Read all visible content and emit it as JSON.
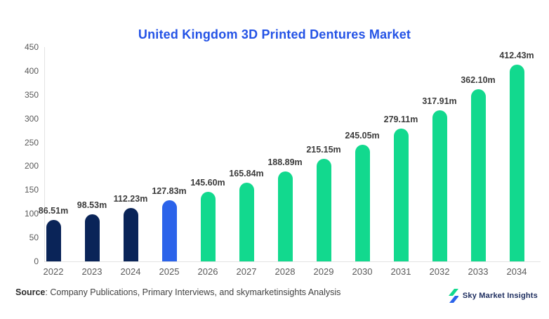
{
  "title": {
    "text": "United Kingdom 3D Printed Dentures Market",
    "color": "#2453e6"
  },
  "chart_data": {
    "type": "bar",
    "title": "United Kingdom 3D Printed Dentures Market",
    "categories": [
      "2022",
      "2023",
      "2024",
      "2025",
      "2026",
      "2027",
      "2028",
      "2029",
      "2030",
      "2031",
      "2032",
      "2033",
      "2034"
    ],
    "values": [
      86.51,
      98.53,
      112.23,
      127.83,
      145.6,
      165.84,
      188.89,
      215.15,
      245.05,
      279.11,
      317.91,
      362.1,
      412.43
    ],
    "value_labels": [
      "86.51m",
      "98.53m",
      "112.23m",
      "127.83m",
      "145.60m",
      "165.84m",
      "188.89m",
      "215.15m",
      "245.05m",
      "279.11m",
      "317.91m",
      "362.10m",
      "412.43m"
    ],
    "bar_colors": [
      "#0a2458",
      "#0a2458",
      "#0a2458",
      "#2b63ea",
      "#12d98e",
      "#12d98e",
      "#12d98e",
      "#12d98e",
      "#12d98e",
      "#12d98e",
      "#12d98e",
      "#12d98e",
      "#12d98e"
    ],
    "xlabel": "",
    "ylabel": "",
    "ylim": [
      0,
      450
    ],
    "yticks": [
      0,
      50,
      100,
      150,
      200,
      250,
      300,
      350,
      400,
      450
    ],
    "grid": false,
    "legend": false
  },
  "footer": {
    "source_label": "Source",
    "source_rest": ": Company Publications, Primary Interviews, and skymarketinsights Analysis",
    "brand_name": "Sky Market Insights",
    "brand_icon_top_color": "#12d98e",
    "brand_icon_bottom_color": "#2b63ea"
  }
}
